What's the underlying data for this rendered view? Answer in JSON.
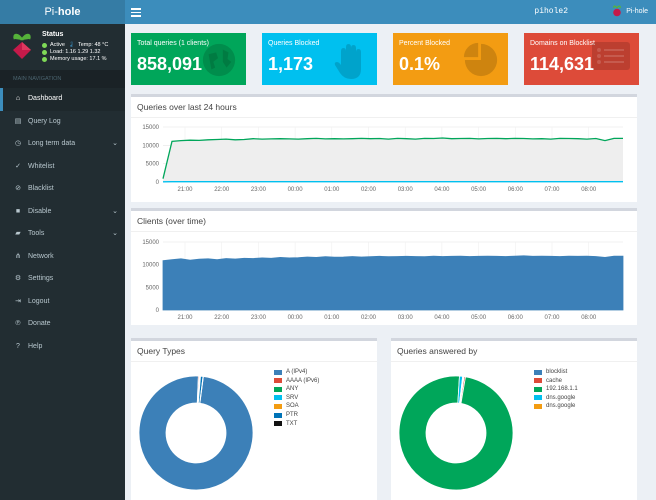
{
  "header": {
    "logo_prefix": "Pi-",
    "logo_suffix": "hole",
    "hostname": "pihole2",
    "user_label": "Pi-hole"
  },
  "status": {
    "title": "Status",
    "active": "Active",
    "temp": "Temp: 48 °C",
    "load": "Load:  1.16  1.29  1.32",
    "memory": "Memory usage:  17.1 %"
  },
  "nav": {
    "header": "MAIN NAVIGATION",
    "items": [
      {
        "label": "Dashboard",
        "icon": "home-icon",
        "active": true,
        "has_submenu": false
      },
      {
        "label": "Query Log",
        "icon": "file-icon",
        "active": false,
        "has_submenu": false
      },
      {
        "label": "Long term data",
        "icon": "clock-icon",
        "active": false,
        "has_submenu": true
      },
      {
        "label": "Whitelist",
        "icon": "check-circle-icon",
        "active": false,
        "has_submenu": false
      },
      {
        "label": "Blacklist",
        "icon": "ban-icon",
        "active": false,
        "has_submenu": false
      },
      {
        "label": "Disable",
        "icon": "stop-icon",
        "active": false,
        "has_submenu": true
      },
      {
        "label": "Tools",
        "icon": "folder-icon",
        "active": false,
        "has_submenu": true
      },
      {
        "label": "Network",
        "icon": "network-icon",
        "active": false,
        "has_submenu": false
      },
      {
        "label": "Settings",
        "icon": "gears-icon",
        "active": false,
        "has_submenu": false
      },
      {
        "label": "Logout",
        "icon": "sign-out-icon",
        "active": false,
        "has_submenu": false
      },
      {
        "label": "Donate",
        "icon": "paypal-icon",
        "active": false,
        "has_submenu": false
      },
      {
        "label": "Help",
        "icon": "question-circle-icon",
        "active": false,
        "has_submenu": false
      }
    ]
  },
  "stats": [
    {
      "label": "Total queries (1 clients)",
      "value": "858,091",
      "color": "#00a65a",
      "icon": "globe-icon"
    },
    {
      "label": "Queries Blocked",
      "value": "1,173",
      "color": "#00c0ef",
      "icon": "hand-icon"
    },
    {
      "label": "Percent Blocked",
      "value": "0.1%",
      "color": "#f39c12",
      "icon": "pie-icon"
    },
    {
      "label": "Domains on Blocklist",
      "value": "114,631",
      "color": "#dd4b39",
      "icon": "list-icon"
    }
  ],
  "panels": {
    "queries_title": "Queries over last 24 hours",
    "clients_title": "Clients (over time)",
    "query_types_title": "Query Types",
    "answered_title": "Queries answered by"
  },
  "chart_data": [
    {
      "type": "line",
      "title": "Queries over last 24 hours",
      "x_ticks": [
        "21:00",
        "22:00",
        "23:00",
        "00:00",
        "01:00",
        "02:00",
        "03:00",
        "04:00",
        "05:00",
        "06:00",
        "07:00",
        "08:00"
      ],
      "y_ticks": [
        "0",
        "5000",
        "10000",
        "15000"
      ],
      "ylim": [
        0,
        15000
      ],
      "series": [
        {
          "color": "#00a65a",
          "values": [
            900,
            11100,
            11300,
            11400,
            11350,
            11500,
            11600,
            11700,
            11500,
            11600,
            11800,
            11700,
            11750,
            11800,
            11750,
            11700,
            11800,
            11900,
            11750,
            11800,
            11750,
            11800,
            11900,
            11800,
            11850,
            11700,
            11900,
            11800,
            11700,
            11900,
            11850,
            12000,
            11800,
            11850,
            11900,
            11750,
            11850,
            11900,
            11800,
            11900,
            11850,
            11750,
            11800,
            11700,
            11900,
            11850,
            11800,
            11700,
            11850,
            11300,
            11900,
            11900
          ]
        },
        {
          "color": "#00c0ef",
          "values": [
            50,
            80,
            80,
            80,
            80,
            80,
            80,
            80,
            80,
            80,
            80,
            80,
            80,
            80,
            80,
            80,
            80,
            80,
            80,
            80,
            80,
            80,
            80,
            80,
            80,
            80,
            80,
            80,
            80,
            80,
            80,
            80,
            80,
            80,
            80,
            80,
            80,
            80,
            80,
            80,
            80,
            80,
            80,
            80,
            80,
            80,
            80,
            80,
            80,
            80,
            80,
            80
          ]
        }
      ]
    },
    {
      "type": "area",
      "title": "Clients (over time)",
      "x_ticks": [
        "21:00",
        "22:00",
        "23:00",
        "00:00",
        "01:00",
        "02:00",
        "03:00",
        "04:00",
        "05:00",
        "06:00",
        "07:00",
        "08:00"
      ],
      "y_ticks": [
        "0",
        "5000",
        "10000",
        "15000"
      ],
      "ylim": [
        0,
        15000
      ],
      "series": [
        {
          "color": "#3c80b8",
          "values": [
            10900,
            11100,
            11300,
            11000,
            11200,
            11300,
            11100,
            11350,
            11250,
            11400,
            11350,
            11500,
            11400,
            11600,
            11500,
            11550,
            11700,
            11600,
            11750,
            11650,
            11700,
            11800,
            11700,
            11750,
            11850,
            11750,
            11800,
            11850,
            11800,
            11750,
            11900,
            11800,
            11850,
            11900,
            11800,
            11850,
            11900,
            11850,
            11800,
            11900,
            11950,
            11850,
            11900,
            11850,
            11800,
            11900,
            11850,
            11900,
            11800,
            11600,
            11900,
            11900
          ]
        }
      ]
    },
    {
      "type": "pie",
      "title": "Query Types",
      "categories": [
        "A (IPv4)",
        "AAAA (IPv6)",
        "ANY",
        "SRV",
        "SOA",
        "PTR",
        "TXT"
      ],
      "colors": [
        "#3c80b8",
        "#dd4b39",
        "#00a65a",
        "#00c0ef",
        "#f39c12",
        "#0073b7",
        "#111111"
      ],
      "values": [
        98.6,
        0.3,
        0.1,
        0.1,
        0.1,
        0.7,
        0.1
      ]
    },
    {
      "type": "pie",
      "title": "Queries answered by",
      "categories": [
        "blocklist",
        "cache",
        "192.168.1.1",
        "dns.google",
        "dns.google"
      ],
      "colors": [
        "#3c80b8",
        "#dd4b39",
        "#00a65a",
        "#00c0ef",
        "#f39c12"
      ],
      "values": [
        0.2,
        0.4,
        98.3,
        0.9,
        0.2
      ]
    }
  ]
}
